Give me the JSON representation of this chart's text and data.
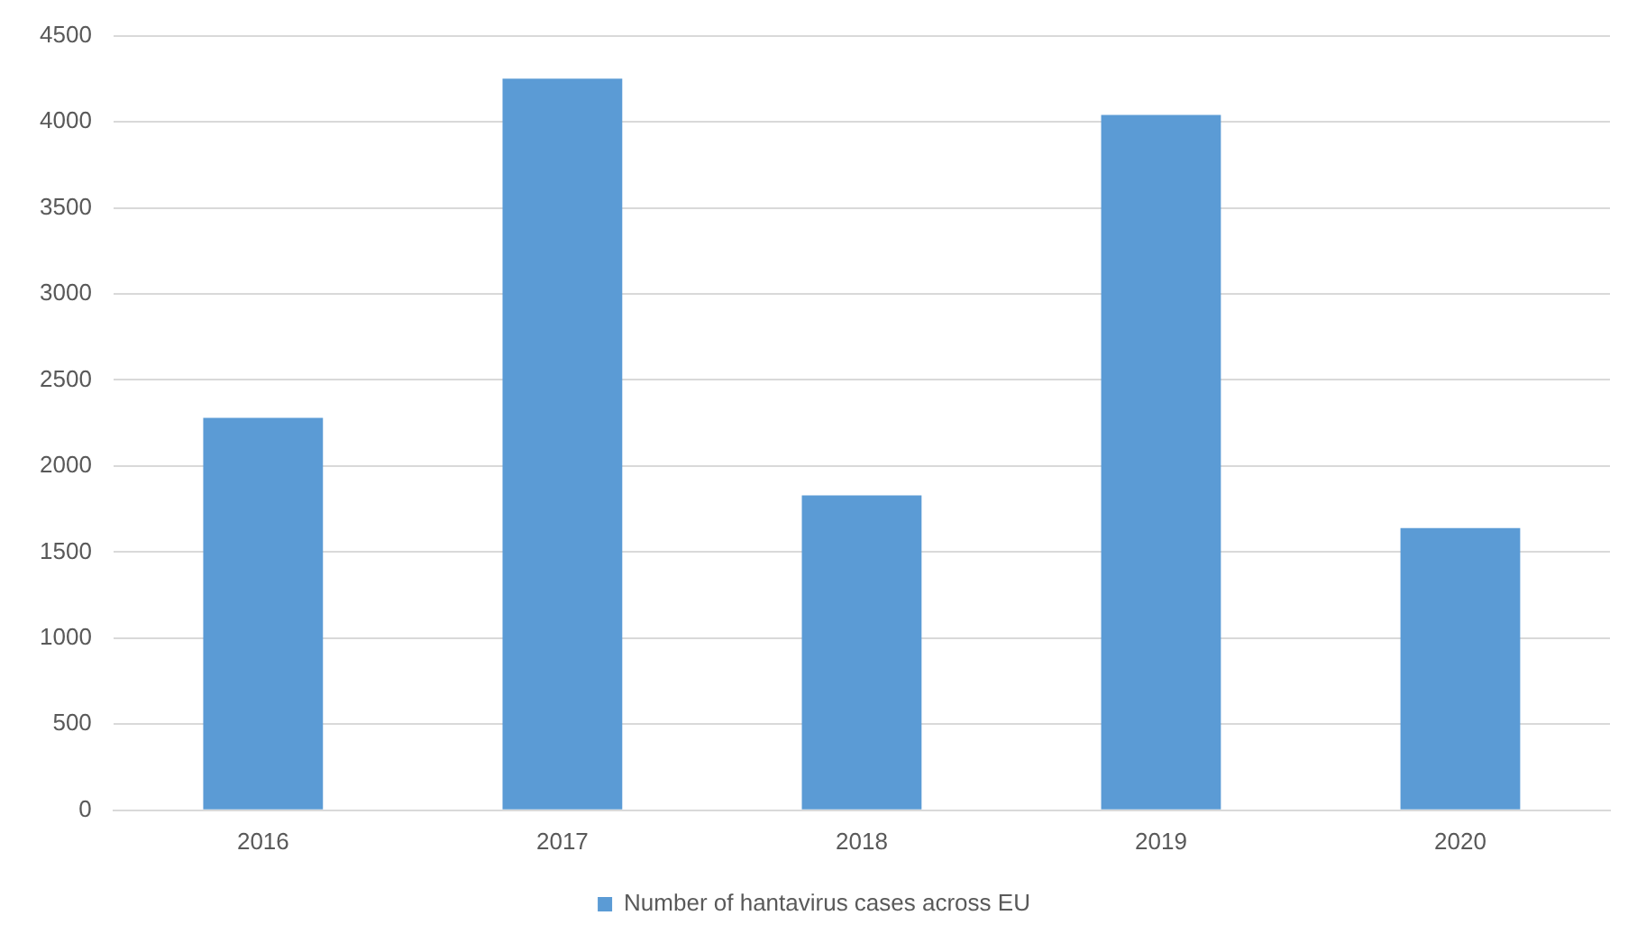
{
  "chart_data": {
    "type": "bar",
    "categories": [
      "2016",
      "2017",
      "2018",
      "2019",
      "2020"
    ],
    "series": [
      {
        "name": "Number of hantavirus cases across EU",
        "color": "#5b9bd5",
        "values": [
          2280,
          4250,
          1830,
          4040,
          1640
        ]
      }
    ],
    "ylim": [
      0,
      4500
    ],
    "yticks": [
      0,
      500,
      1000,
      1500,
      2000,
      2500,
      3000,
      3500,
      4000,
      4500
    ],
    "grid": "y",
    "legend": "bottom"
  }
}
